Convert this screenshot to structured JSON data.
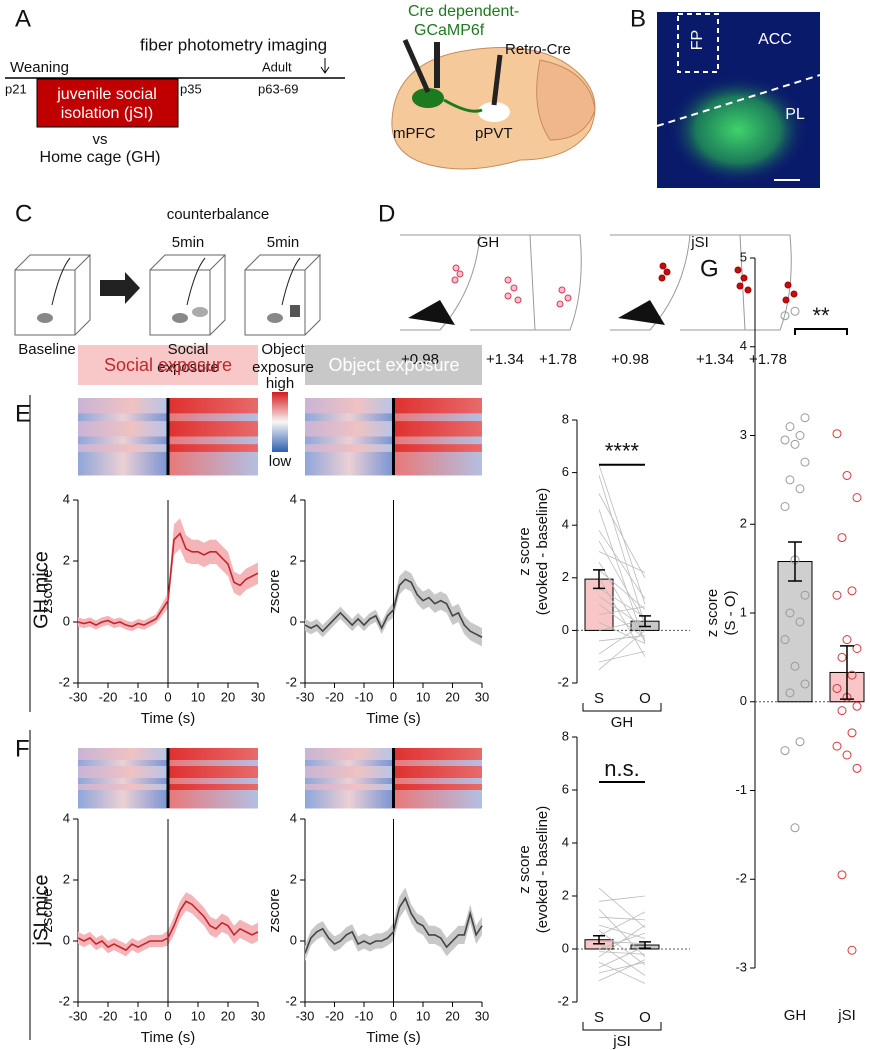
{
  "panel_labels": {
    "a": "A",
    "b": "B",
    "c": "C",
    "d": "D",
    "e": "E",
    "f": "F",
    "g": "G"
  },
  "panel_a": {
    "weaning": "Weaning",
    "imaging": "fiber photometry imaging",
    "adult": "Adult",
    "p21": "p21",
    "p35": "p35",
    "p63": "p63-69",
    "box": [
      "juvenile social",
      "isolation (jSI)"
    ],
    "vs": "vs",
    "control": "Home cage (GH)",
    "virus": [
      "Cre dependent-",
      "GCaMP6f"
    ],
    "retro": "Retro-Cre",
    "mpfc": "mPFC",
    "ppvt": "pPVT"
  },
  "panel_b": {
    "fp": "FP",
    "acc": "ACC",
    "pl": "PL"
  },
  "panel_c": {
    "title": "counterbalance",
    "duration": [
      "5min",
      "5min"
    ],
    "conditions": [
      [
        "Baseline"
      ],
      [
        "Social",
        "exposure"
      ],
      [
        "Object",
        "exposure"
      ]
    ]
  },
  "panel_d": {
    "groups": [
      {
        "name": "GH",
        "sections": [
          "+0.98",
          "+1.34",
          "+1.78"
        ]
      },
      {
        "name": "jSI",
        "sections": [
          "+0.98",
          "+1.34",
          "+1.78"
        ]
      }
    ]
  },
  "heatmap": {
    "social": "Social exposure",
    "object": "Object exposure",
    "high": "high",
    "low": "low"
  },
  "groups": [
    "GH mice",
    "jSI mice"
  ],
  "chart_data": [
    {
      "type": "line",
      "x": [
        -30,
        -28,
        -26,
        -24,
        -22,
        -20,
        -18,
        -16,
        -14,
        -12,
        -10,
        -8,
        -6,
        -4,
        -2,
        0,
        2,
        4,
        6,
        8,
        10,
        12,
        14,
        16,
        18,
        20,
        22,
        24,
        26,
        28,
        30
      ],
      "values": [
        0,
        -0.05,
        0,
        -0.1,
        0,
        0.05,
        -0.05,
        0,
        -0.1,
        -0.15,
        -0.05,
        -0.1,
        0,
        0.1,
        0.4,
        0.7,
        2.7,
        2.9,
        2.4,
        2.3,
        2.3,
        2.2,
        2.3,
        2.3,
        2.1,
        1.9,
        1.3,
        1.2,
        1.4,
        1.5,
        1.6
      ],
      "errors": [
        0.15,
        0.15,
        0.15,
        0.15,
        0.15,
        0.15,
        0.15,
        0.15,
        0.15,
        0.15,
        0.15,
        0.15,
        0.15,
        0.15,
        0.2,
        0.25,
        0.5,
        0.5,
        0.45,
        0.4,
        0.4,
        0.4,
        0.4,
        0.4,
        0.4,
        0.4,
        0.35,
        0.35,
        0.35,
        0.35,
        0.35
      ],
      "color": "#c1272d",
      "band_color": "#f5b5b8",
      "xlim": [
        -30,
        30
      ],
      "xticks": [
        -30,
        -20,
        -10,
        0,
        10,
        20,
        30
      ],
      "ylim": [
        -2,
        4
      ],
      "yticks": [
        -2,
        0,
        2,
        4
      ],
      "xlabel": "Time (s)",
      "ylabel": "zscore",
      "onset": 0
    },
    {
      "type": "line",
      "x": [
        -30,
        -28,
        -26,
        -24,
        -22,
        -20,
        -18,
        -16,
        -14,
        -12,
        -10,
        -8,
        -6,
        -4,
        -2,
        0,
        2,
        4,
        6,
        8,
        10,
        12,
        14,
        16,
        18,
        20,
        22,
        24,
        26,
        28,
        30
      ],
      "values": [
        -0.1,
        -0.2,
        -0.1,
        -0.3,
        -0.1,
        0.1,
        0.3,
        0.1,
        -0.1,
        0.1,
        -0.1,
        0.1,
        0.2,
        -0.2,
        0.2,
        0.4,
        1.2,
        1.4,
        1.3,
        0.9,
        0.7,
        0.8,
        0.6,
        0.7,
        0.6,
        0.2,
        0.3,
        -0.1,
        -0.3,
        -0.4,
        -0.5
      ],
      "errors": [
        0.2,
        0.2,
        0.2,
        0.2,
        0.2,
        0.2,
        0.2,
        0.2,
        0.2,
        0.2,
        0.2,
        0.2,
        0.2,
        0.2,
        0.2,
        0.25,
        0.3,
        0.3,
        0.3,
        0.3,
        0.3,
        0.3,
        0.3,
        0.3,
        0.3,
        0.3,
        0.3,
        0.3,
        0.3,
        0.3,
        0.3
      ],
      "color": "#444444",
      "band_color": "#c8c8c8",
      "xlim": [
        -30,
        30
      ],
      "xticks": [
        -30,
        -20,
        -10,
        0,
        10,
        20,
        30
      ],
      "ylim": [
        -2,
        4
      ],
      "yticks": [
        -2,
        0,
        2,
        4
      ],
      "xlabel": "Time (s)",
      "ylabel": "zscore",
      "onset": 0
    },
    {
      "type": "line",
      "x": [
        -30,
        -28,
        -26,
        -24,
        -22,
        -20,
        -18,
        -16,
        -14,
        -12,
        -10,
        -8,
        -6,
        -4,
        -2,
        0,
        2,
        4,
        6,
        8,
        10,
        12,
        14,
        16,
        18,
        20,
        22,
        24,
        26,
        28,
        30
      ],
      "values": [
        0.1,
        0,
        0.1,
        -0.1,
        0,
        -0.2,
        -0.1,
        -0.2,
        -0.3,
        -0.1,
        -0.2,
        -0.1,
        0,
        0,
        0,
        0.1,
        0.5,
        1.0,
        1.3,
        1.2,
        1.0,
        0.8,
        0.5,
        0.4,
        0.6,
        0.5,
        0.2,
        0.4,
        0.3,
        0.2,
        0.3
      ],
      "errors": [
        0.2,
        0.2,
        0.2,
        0.2,
        0.2,
        0.2,
        0.2,
        0.2,
        0.2,
        0.2,
        0.2,
        0.2,
        0.2,
        0.2,
        0.2,
        0.25,
        0.3,
        0.3,
        0.3,
        0.3,
        0.3,
        0.3,
        0.3,
        0.3,
        0.3,
        0.3,
        0.3,
        0.3,
        0.3,
        0.3,
        0.3
      ],
      "color": "#c1272d",
      "band_color": "#f5b5b8",
      "xlim": [
        -30,
        30
      ],
      "xticks": [
        -30,
        -20,
        -10,
        0,
        10,
        20,
        30
      ],
      "ylim": [
        -2,
        4
      ],
      "yticks": [
        -2,
        0,
        2,
        4
      ],
      "xlabel": "Time (s)",
      "ylabel": "zscore",
      "onset": 0
    },
    {
      "type": "line",
      "x": [
        -30,
        -28,
        -26,
        -24,
        -22,
        -20,
        -18,
        -16,
        -14,
        -12,
        -10,
        -8,
        -6,
        -4,
        -2,
        0,
        2,
        4,
        6,
        8,
        10,
        12,
        14,
        16,
        18,
        20,
        22,
        24,
        26,
        28,
        30
      ],
      "values": [
        -0.4,
        0.1,
        0.3,
        0.4,
        0.1,
        -0.1,
        0,
        0.2,
        0.3,
        -0.1,
        0,
        -0.1,
        0,
        0,
        0.1,
        0.3,
        1.1,
        1.4,
        0.9,
        0.6,
        0.5,
        0.2,
        0.2,
        0.1,
        -0.2,
        0,
        0.2,
        0.2,
        0.9,
        0.2,
        0.5
      ],
      "errors": [
        0.25,
        0.25,
        0.25,
        0.25,
        0.25,
        0.25,
        0.25,
        0.25,
        0.25,
        0.25,
        0.25,
        0.25,
        0.25,
        0.25,
        0.25,
        0.3,
        0.35,
        0.35,
        0.3,
        0.3,
        0.3,
        0.3,
        0.3,
        0.3,
        0.3,
        0.3,
        0.3,
        0.3,
        0.3,
        0.3,
        0.3
      ],
      "color": "#444444",
      "band_color": "#c8c8c8",
      "xlim": [
        -30,
        30
      ],
      "xticks": [
        -30,
        -20,
        -10,
        0,
        10,
        20,
        30
      ],
      "ylim": [
        -2,
        4
      ],
      "yticks": [
        -2,
        0,
        2,
        4
      ],
      "xlabel": "Time (s)",
      "ylabel": "zscore",
      "onset": 0
    },
    {
      "type": "paired_bar",
      "categories": [
        "S",
        "O"
      ],
      "values": [
        1.95,
        0.35
      ],
      "errors": [
        0.35,
        0.2
      ],
      "colors": [
        "#f8c6c6",
        "#c8c8c8"
      ],
      "pairs": [
        [
          6.3,
          1.0
        ],
        [
          5.9,
          0.2
        ],
        [
          5.2,
          2.0
        ],
        [
          4.6,
          -0.5
        ],
        [
          3.8,
          1.2
        ],
        [
          3.4,
          0.3
        ],
        [
          3.0,
          2.2
        ],
        [
          2.6,
          -0.4
        ],
        [
          2.3,
          0.8
        ],
        [
          2.0,
          -1.0
        ],
        [
          1.6,
          0.5
        ],
        [
          1.3,
          0.1
        ],
        [
          1.0,
          -0.3
        ],
        [
          0.6,
          0.9
        ],
        [
          0.3,
          -0.5
        ],
        [
          0.0,
          0.4
        ],
        [
          -0.4,
          -0.2
        ],
        [
          -0.9,
          0.3
        ],
        [
          -1.2,
          -0.8
        ],
        [
          -1.5,
          0.0
        ]
      ],
      "ylim": [
        -2,
        8
      ],
      "yticks": [
        -2,
        0,
        2,
        4,
        6,
        8
      ],
      "ylabel": [
        "z score",
        "(evoked - baseline)"
      ],
      "group": "GH",
      "significance": "****"
    },
    {
      "type": "paired_bar",
      "categories": [
        "S",
        "O"
      ],
      "values": [
        0.35,
        0.15
      ],
      "errors": [
        0.15,
        0.12
      ],
      "colors": [
        "#f8c6c6",
        "#c8c8c8"
      ],
      "pairs": [
        [
          2.3,
          0.8
        ],
        [
          1.8,
          2.0
        ],
        [
          1.5,
          -0.3
        ],
        [
          1.2,
          1.1
        ],
        [
          0.9,
          0.4
        ],
        [
          0.7,
          -0.6
        ],
        [
          0.5,
          1.4
        ],
        [
          0.3,
          0.2
        ],
        [
          0.2,
          -1.0
        ],
        [
          0.0,
          0.6
        ],
        [
          -0.1,
          -0.2
        ],
        [
          -0.3,
          0.9
        ],
        [
          -0.5,
          -1.3
        ],
        [
          -0.7,
          0.1
        ],
        [
          -0.9,
          -0.5
        ],
        [
          -1.2,
          -0.4
        ]
      ],
      "ylim": [
        -2,
        8
      ],
      "yticks": [
        -2,
        0,
        2,
        4,
        6,
        8
      ],
      "ylabel": [
        "z score",
        "(evoked - baseline)"
      ],
      "group": "jSI",
      "significance": "n.s."
    },
    {
      "type": "bar_scatter",
      "categories": [
        "GH",
        "jSI"
      ],
      "values": [
        1.58,
        0.33
      ],
      "errors": [
        0.22,
        0.3
      ],
      "colors": [
        "#cfcfcf",
        "#f8c6c6"
      ],
      "point_colors": [
        "#999999",
        "#d9363e"
      ],
      "points": [
        [
          4.35,
          4.4,
          3.2,
          3.1,
          3.0,
          2.95,
          2.9,
          2.7,
          2.5,
          2.4,
          2.2,
          1.6,
          1.2,
          1.0,
          0.9,
          0.7,
          0.4,
          0.2,
          0.1,
          -0.45,
          -0.55,
          -1.42
        ],
        [
          3.02,
          2.55,
          2.3,
          1.85,
          1.25,
          1.2,
          0.7,
          0.6,
          0.5,
          0.3,
          0.15,
          0.05,
          -0.05,
          -0.1,
          -0.35,
          -0.5,
          -0.6,
          -0.75,
          -1.95,
          -2.8
        ]
      ],
      "ylim": [
        -3,
        5
      ],
      "yticks": [
        -3,
        -2,
        -1,
        0,
        1,
        2,
        3,
        4,
        5
      ],
      "ylabel": [
        "z score",
        "(S - O)"
      ],
      "significance": "**"
    }
  ]
}
